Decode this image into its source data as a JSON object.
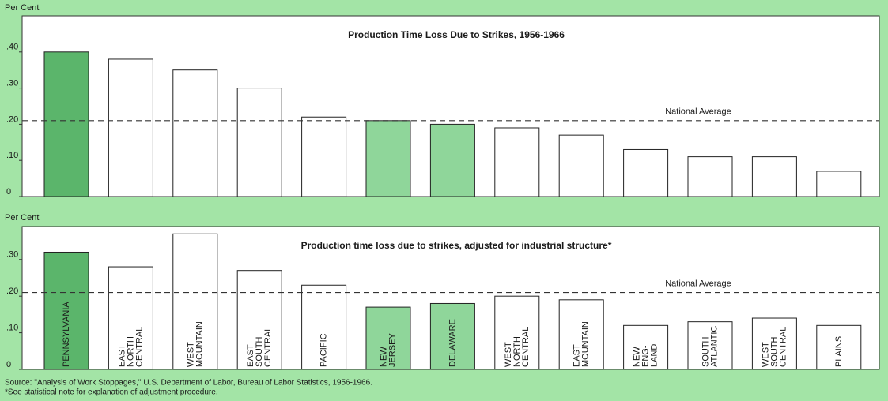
{
  "chart_data": [
    {
      "type": "bar",
      "title": "Production Time Loss Due to Strikes, 1956-1966",
      "y_label": "Per Cent",
      "categories": [
        null,
        null,
        null,
        null,
        null,
        null,
        null,
        null,
        null,
        null,
        null,
        null,
        null
      ],
      "values": [
        0.4,
        0.38,
        0.35,
        0.3,
        0.22,
        0.21,
        0.2,
        0.19,
        0.17,
        0.13,
        0.11,
        0.11,
        0.07
      ],
      "colors": [
        "#5bb56b",
        "#ffffff",
        "#ffffff",
        "#ffffff",
        "#ffffff",
        "#8fd69a",
        "#8fd69a",
        "#ffffff",
        "#ffffff",
        "#ffffff",
        "#ffffff",
        "#ffffff",
        "#ffffff"
      ],
      "ylim": [
        0,
        0.5
      ],
      "yticks": [
        0,
        {
          "value": 0.1,
          "label": ".10"
        },
        {
          "value": 0.2,
          "label": ".20"
        },
        {
          "value": 0.3,
          "label": ".30"
        },
        {
          "value": 0.4,
          "label": ".40"
        }
      ],
      "reference_line": {
        "label": "National Average",
        "value": 0.21
      }
    },
    {
      "type": "bar",
      "title": "Production time loss due to strikes, adjusted for industrial structure*",
      "y_label": "Per Cent",
      "categories": [
        "PENNSYLVANIA",
        "EAST\nNORTH\nCENTRAL",
        "WEST\nMOUNTAIN",
        "EAST\nSOUTH\nCENTRAL",
        "PACIFIC",
        "NEW\nJERSEY",
        "DELAWARE",
        "WEST\nNORTH\nCENTRAL",
        "EAST\nMOUNTAIN",
        "NEW\nENG-\nLAND",
        "SOUTH\nATLANTIC",
        "WEST\nSOUTH\nCENTRAL",
        "PLAINS"
      ],
      "values": [
        0.32,
        0.28,
        0.37,
        0.27,
        0.23,
        0.17,
        0.18,
        0.2,
        0.19,
        0.12,
        0.13,
        0.14,
        0.12
      ],
      "colors": [
        "#5bb56b",
        "#ffffff",
        "#ffffff",
        "#ffffff",
        "#ffffff",
        "#8fd69a",
        "#8fd69a",
        "#ffffff",
        "#ffffff",
        "#ffffff",
        "#ffffff",
        "#ffffff",
        "#ffffff"
      ],
      "ylim": [
        0,
        0.39
      ],
      "yticks": [
        0,
        {
          "value": 0.1,
          "label": ".10"
        },
        {
          "value": 0.2,
          "label": ".20"
        },
        {
          "value": 0.3,
          "label": ".30"
        }
      ],
      "reference_line": {
        "label": "National Average",
        "value": 0.21
      }
    }
  ],
  "source": [
    "Source: ''Analysis of Work Stoppages,'' U.S. Department of Labor, Bureau of Labor Statistics, 1956-1966.",
    "*See statistical note for explanation of adjustment procedure."
  ]
}
